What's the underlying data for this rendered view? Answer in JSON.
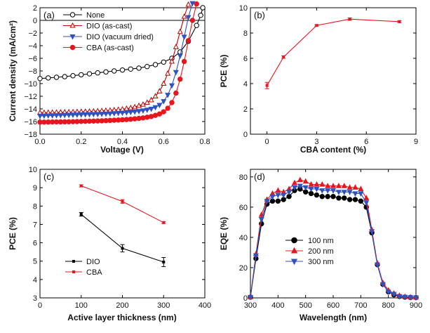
{
  "chart_data": [
    {
      "panel": "(a)",
      "type": "line",
      "xlabel": "Voltage (V)",
      "ylabel": "Current density (mA/cm²)",
      "xlim": [
        0,
        0.8
      ],
      "ylim": [
        -18,
        2
      ],
      "xticks": [
        0.0,
        0.2,
        0.4,
        0.6,
        0.8
      ],
      "xtick_labels": [
        "0.0",
        "0.2",
        "0.4",
        "0.6",
        "0.8"
      ],
      "yticks": [
        -18,
        -16,
        -14,
        -12,
        -10,
        -8,
        -6,
        -4,
        -2,
        0,
        2
      ],
      "legend_position": "top-left",
      "series": [
        {
          "name": "None",
          "marker": "open-circle",
          "color": "#000000",
          "x": [
            0.0,
            0.04,
            0.08,
            0.12,
            0.16,
            0.2,
            0.24,
            0.28,
            0.32,
            0.36,
            0.4,
            0.44,
            0.48,
            0.52,
            0.56,
            0.6,
            0.64,
            0.68,
            0.72,
            0.76,
            0.78,
            0.79
          ],
          "y": [
            -9.2,
            -9.1,
            -9.0,
            -8.9,
            -8.75,
            -8.6,
            -8.45,
            -8.3,
            -8.15,
            -8.0,
            -7.85,
            -7.7,
            -7.55,
            -7.3,
            -7.0,
            -6.6,
            -6.0,
            -5.0,
            -3.3,
            -0.8,
            0.8,
            2.0
          ]
        },
        {
          "name": "DIO (as-cast)",
          "marker": "open-triangle",
          "color": "#c00000",
          "x": [
            0.0,
            0.02,
            0.04,
            0.06,
            0.08,
            0.1,
            0.12,
            0.14,
            0.16,
            0.18,
            0.2,
            0.22,
            0.24,
            0.26,
            0.28,
            0.3,
            0.32,
            0.34,
            0.36,
            0.38,
            0.4,
            0.42,
            0.44,
            0.46,
            0.48,
            0.5,
            0.52,
            0.54,
            0.56,
            0.58,
            0.6,
            0.62,
            0.64,
            0.66,
            0.68,
            0.7,
            0.72
          ],
          "y": [
            -14.6,
            -14.6,
            -14.58,
            -14.56,
            -14.55,
            -14.53,
            -14.51,
            -14.5,
            -14.48,
            -14.46,
            -14.44,
            -14.42,
            -14.4,
            -14.37,
            -14.34,
            -14.3,
            -14.27,
            -14.23,
            -14.18,
            -14.12,
            -14.05,
            -13.95,
            -13.85,
            -13.7,
            -13.5,
            -13.3,
            -13.0,
            -12.6,
            -12.0,
            -11.2,
            -10.0,
            -8.4,
            -6.5,
            -4.2,
            -1.8,
            0.6,
            2.5
          ]
        },
        {
          "name": "DIO (vacuum dried)",
          "marker": "filled-triangle-down",
          "color": "#2f52c0",
          "x": [
            0.0,
            0.02,
            0.04,
            0.06,
            0.08,
            0.1,
            0.12,
            0.14,
            0.16,
            0.18,
            0.2,
            0.22,
            0.24,
            0.26,
            0.28,
            0.3,
            0.32,
            0.34,
            0.36,
            0.38,
            0.4,
            0.42,
            0.44,
            0.46,
            0.48,
            0.5,
            0.52,
            0.54,
            0.56,
            0.58,
            0.6,
            0.62,
            0.64,
            0.66,
            0.68,
            0.7,
            0.72,
            0.74
          ],
          "y": [
            -15.1,
            -15.08,
            -15.06,
            -15.04,
            -15.02,
            -15.0,
            -14.98,
            -14.96,
            -14.94,
            -14.92,
            -14.9,
            -14.88,
            -14.86,
            -14.84,
            -14.82,
            -14.8,
            -14.77,
            -14.74,
            -14.7,
            -14.66,
            -14.62,
            -14.57,
            -14.52,
            -14.45,
            -14.37,
            -14.27,
            -14.15,
            -14.0,
            -13.75,
            -13.4,
            -12.8,
            -11.8,
            -10.3,
            -8.2,
            -5.6,
            -2.6,
            0.5,
            2.7
          ]
        },
        {
          "name": "CBA (as-cast)",
          "marker": "filled-circle",
          "color": "#e8141e",
          "x": [
            0.0,
            0.02,
            0.04,
            0.06,
            0.08,
            0.1,
            0.12,
            0.14,
            0.16,
            0.18,
            0.2,
            0.22,
            0.24,
            0.26,
            0.28,
            0.3,
            0.32,
            0.34,
            0.36,
            0.38,
            0.4,
            0.42,
            0.44,
            0.46,
            0.48,
            0.5,
            0.52,
            0.54,
            0.56,
            0.58,
            0.6,
            0.62,
            0.64,
            0.66,
            0.68,
            0.7,
            0.72,
            0.74,
            0.76
          ],
          "y": [
            -16.1,
            -16.09,
            -16.08,
            -16.07,
            -16.06,
            -16.05,
            -16.04,
            -16.03,
            -16.02,
            -16.0,
            -15.98,
            -15.96,
            -15.94,
            -15.92,
            -15.9,
            -15.88,
            -15.85,
            -15.82,
            -15.79,
            -15.76,
            -15.72,
            -15.68,
            -15.63,
            -15.57,
            -15.5,
            -15.42,
            -15.32,
            -15.2,
            -15.02,
            -14.8,
            -14.45,
            -13.9,
            -13.0,
            -11.5,
            -9.3,
            -6.5,
            -3.2,
            0.0,
            2.6
          ]
        }
      ]
    },
    {
      "panel": "(b)",
      "type": "line",
      "xlabel": "CBA content (%)",
      "ylabel": "PCE (%)",
      "xlim": [
        -1,
        9
      ],
      "ylim": [
        0,
        10
      ],
      "xticks": [
        0,
        3,
        6,
        9
      ],
      "yticks": [
        0,
        2,
        4,
        6,
        8,
        10
      ],
      "series": [
        {
          "name": "CBA",
          "color": "#e8141e",
          "x": [
            0,
            1,
            3,
            5,
            8
          ],
          "y": [
            3.85,
            6.1,
            8.6,
            9.1,
            8.9
          ],
          "err": [
            0.25,
            0.1,
            0.06,
            0.1,
            0.08
          ]
        }
      ]
    },
    {
      "panel": "(c)",
      "type": "line",
      "xlabel": "Active layer thickness (nm)",
      "ylabel": "PCE (%)",
      "xlim": [
        0,
        400
      ],
      "ylim": [
        3,
        10
      ],
      "xticks": [
        0,
        100,
        200,
        300,
        400
      ],
      "yticks": [
        3,
        4,
        5,
        6,
        7,
        8,
        9,
        10
      ],
      "legend_position": "bottom-left",
      "series": [
        {
          "name": "DIO",
          "color": "#000000",
          "x": [
            100,
            200,
            300
          ],
          "y": [
            7.55,
            5.7,
            4.95
          ],
          "err": [
            0.1,
            0.2,
            0.25
          ]
        },
        {
          "name": "CBA",
          "color": "#e8141e",
          "x": [
            100,
            200,
            300
          ],
          "y": [
            9.1,
            8.25,
            7.1
          ],
          "err": [
            0.06,
            0.1,
            0.05
          ]
        }
      ]
    },
    {
      "panel": "(d)",
      "type": "line",
      "xlabel": "Wavelength (nm)",
      "ylabel": "EQE (%)",
      "xlim": [
        300,
        900
      ],
      "ylim": [
        0,
        85
      ],
      "xticks": [
        300,
        400,
        500,
        600,
        700,
        800,
        900
      ],
      "yticks": [
        0,
        20,
        40,
        60,
        80
      ],
      "legend_position": "center-left",
      "series": [
        {
          "name": "100 nm",
          "marker": "filled-circle",
          "color": "#000000",
          "x": [
            300,
            320,
            340,
            360,
            380,
            400,
            420,
            440,
            460,
            480,
            500,
            520,
            540,
            560,
            580,
            600,
            620,
            640,
            660,
            680,
            700,
            720,
            740,
            760,
            780,
            800,
            820,
            840,
            860,
            880,
            900
          ],
          "y": [
            0.5,
            26,
            49,
            62,
            64,
            64,
            65,
            67,
            71,
            72,
            70,
            69,
            68,
            67,
            67,
            67,
            66,
            66,
            65,
            65,
            64,
            60,
            43,
            22,
            9,
            4,
            2,
            1,
            0.5,
            0.3,
            0.2
          ]
        },
        {
          "name": "200 nm",
          "marker": "filled-triangle",
          "color": "#e8141e",
          "x": [
            300,
            320,
            340,
            360,
            380,
            400,
            420,
            440,
            460,
            480,
            500,
            520,
            540,
            560,
            580,
            600,
            620,
            640,
            660,
            680,
            700,
            720,
            740,
            760,
            780,
            800,
            820,
            840,
            860,
            880,
            900
          ],
          "y": [
            0.5,
            29,
            55,
            65,
            69,
            71,
            70,
            72,
            76,
            78,
            77,
            75,
            75,
            75,
            74,
            74,
            74,
            74,
            73,
            73,
            72,
            66,
            45,
            23,
            10,
            5,
            3,
            1.5,
            0.8,
            0.4,
            0.3
          ]
        },
        {
          "name": "300 nm",
          "marker": "filled-triangle-down",
          "color": "#2f52c0",
          "x": [
            300,
            320,
            340,
            360,
            380,
            400,
            420,
            440,
            460,
            480,
            500,
            520,
            540,
            560,
            580,
            600,
            620,
            640,
            660,
            680,
            700,
            720,
            740,
            760,
            780,
            800,
            820,
            840,
            860,
            880,
            900
          ],
          "y": [
            0.5,
            28,
            52,
            64,
            67,
            68,
            68,
            70,
            73,
            74,
            73,
            72,
            72,
            71,
            71,
            71,
            70,
            70,
            70,
            69,
            69,
            63,
            44,
            22,
            9,
            4,
            2.5,
            1,
            0.6,
            0.3,
            0.2
          ]
        }
      ]
    }
  ]
}
